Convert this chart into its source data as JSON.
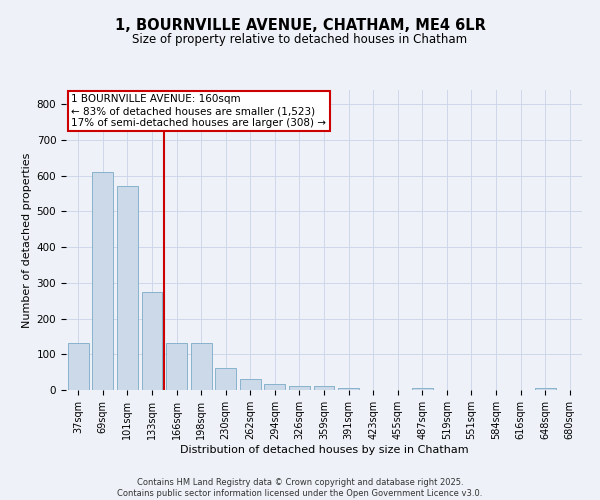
{
  "title": "1, BOURNVILLE AVENUE, CHATHAM, ME4 6LR",
  "subtitle": "Size of property relative to detached houses in Chatham",
  "xlabel": "Distribution of detached houses by size in Chatham",
  "ylabel": "Number of detached properties",
  "categories": [
    "37sqm",
    "69sqm",
    "101sqm",
    "133sqm",
    "166sqm",
    "198sqm",
    "230sqm",
    "262sqm",
    "294sqm",
    "326sqm",
    "359sqm",
    "391sqm",
    "423sqm",
    "455sqm",
    "487sqm",
    "519sqm",
    "551sqm",
    "584sqm",
    "616sqm",
    "648sqm",
    "680sqm"
  ],
  "values": [
    133,
    610,
    570,
    275,
    133,
    133,
    63,
    30,
    18,
    10,
    12,
    5,
    0,
    0,
    5,
    0,
    0,
    0,
    0,
    7,
    0
  ],
  "bar_color": "#ccd9e8",
  "bar_edge_color": "#7aaac8",
  "vline_color": "#cc0000",
  "vline_x": 3.5,
  "annotation_title": "1 BOURNVILLE AVENUE: 160sqm",
  "annotation_line1": "← 83% of detached houses are smaller (1,523)",
  "annotation_line2": "17% of semi-detached houses are larger (308) →",
  "annotation_box_color": "#ffffff",
  "annotation_box_edge": "#cc0000",
  "grid_color": "#cdd8ea",
  "bg_color": "#eef2f8",
  "footer": "Contains HM Land Registry data © Crown copyright and database right 2025.\nContains public sector information licensed under the Open Government Licence v3.0.",
  "ylim": [
    0,
    840
  ],
  "yticks": [
    0,
    100,
    200,
    300,
    400,
    500,
    600,
    700,
    800
  ],
  "title_fontsize": 10.5,
  "subtitle_fontsize": 8.5,
  "tick_fontsize": 7,
  "label_fontsize": 8,
  "annotation_fontsize": 7.5,
  "footer_fontsize": 6
}
